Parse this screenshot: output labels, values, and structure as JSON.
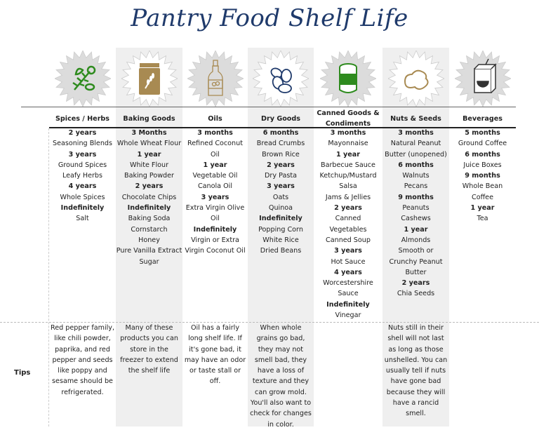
{
  "title": "Pantry Food Shelf Life",
  "tips_label": "Tips",
  "colors": {
    "title": "#1f3a6b",
    "herb_green": "#2e8b1e",
    "gold": "#a88a52",
    "navy": "#1f3a6b",
    "shade": "#efefef"
  },
  "columns": [
    {
      "header": "Spices / Herbs",
      "icon": "herbs-icon",
      "shaded": false,
      "entries": [
        {
          "t": "2 years",
          "b": true
        },
        {
          "t": "Seasoning Blends"
        },
        {
          "t": "3 years",
          "b": true
        },
        {
          "t": "Ground Spices"
        },
        {
          "t": "Leafy Herbs"
        },
        {
          "t": "4 years",
          "b": true
        },
        {
          "t": "Whole Spices"
        },
        {
          "t": "Indefinitely",
          "b": true
        },
        {
          "t": "Salt"
        }
      ],
      "tip": "Red pepper family, like chili powder, paprika, and red pepper and seeds like poppy and sesame should be refrigerated."
    },
    {
      "header": "Baking Goods",
      "icon": "flour-jar-icon",
      "shaded": true,
      "entries": [
        {
          "t": "3 Months",
          "b": true
        },
        {
          "t": "Whole Wheat Flour"
        },
        {
          "t": "1 year",
          "b": true
        },
        {
          "t": "White Flour"
        },
        {
          "t": "Baking Powder"
        },
        {
          "t": "2 years",
          "b": true
        },
        {
          "t": "Chocolate Chips"
        },
        {
          "t": "Indefinitely",
          "b": true
        },
        {
          "t": "Baking Soda"
        },
        {
          "t": "Cornstarch"
        },
        {
          "t": "Honey"
        },
        {
          "t": "Pure Vanilla Extract"
        },
        {
          "t": "Sugar"
        }
      ],
      "tip": "Many of these products you can store in the freezer to extend the shelf life"
    },
    {
      "header": "Oils",
      "icon": "oil-bottle-icon",
      "shaded": false,
      "entries": [
        {
          "t": "3 months",
          "b": true
        },
        {
          "t": "Refined Coconut"
        },
        {
          "t": "Oil"
        },
        {
          "t": "1 year",
          "b": true
        },
        {
          "t": "Vegetable Oil"
        },
        {
          "t": "Canola Oil"
        },
        {
          "t": "3 years",
          "b": true
        },
        {
          "t": "Extra Virgin Olive"
        },
        {
          "t": "Oil"
        },
        {
          "t": "Indefinitely",
          "b": true
        },
        {
          "t": "Virgin or Extra"
        },
        {
          "t": "Virgin Coconut Oil"
        }
      ],
      "tip": "Oil has a fairly long shelf life. If it's gone bad, it may have an odor or taste stall or off."
    },
    {
      "header": "Dry Goods",
      "icon": "beans-icon",
      "shaded": true,
      "entries": [
        {
          "t": "6 months",
          "b": true
        },
        {
          "t": "Bread Crumbs"
        },
        {
          "t": "Brown Rice"
        },
        {
          "t": "2 years",
          "b": true
        },
        {
          "t": "Dry Pasta"
        },
        {
          "t": "3 years",
          "b": true
        },
        {
          "t": "Oats"
        },
        {
          "t": "Quinoa"
        },
        {
          "t": "Indefinitely",
          "b": true
        },
        {
          "t": "Popping Corn"
        },
        {
          "t": "White Rice"
        },
        {
          "t": "Dried Beans"
        }
      ],
      "tip": "When whole grains go bad, they may not smell bad, they have a loss of texture and they can grow mold. You'll also want to check for changes in color."
    },
    {
      "header": "Canned Goods & Condiments",
      "icon": "can-icon",
      "shaded": false,
      "entries": [
        {
          "t": "3 months",
          "b": true
        },
        {
          "t": "Mayonnaise"
        },
        {
          "t": "1 year",
          "b": true
        },
        {
          "t": "Barbecue Sauce"
        },
        {
          "t": "Ketchup/Mustard"
        },
        {
          "t": "Salsa"
        },
        {
          "t": "Jams & Jellies"
        },
        {
          "t": "2 years",
          "b": true
        },
        {
          "t": "Canned"
        },
        {
          "t": "Vegetables"
        },
        {
          "t": "Canned Soup"
        },
        {
          "t": "3 years",
          "b": true
        },
        {
          "t": "Hot Sauce"
        },
        {
          "t": "4 years",
          "b": true
        },
        {
          "t": "Worcestershire"
        },
        {
          "t": "Sauce"
        },
        {
          "t": "Indefinitely",
          "b": true
        },
        {
          "t": "Vinegar"
        }
      ],
      "tip": ""
    },
    {
      "header": "Nuts & Seeds",
      "icon": "peanuts-icon",
      "shaded": true,
      "entries": [
        {
          "t": "3 months",
          "b": true
        },
        {
          "t": "Natural Peanut"
        },
        {
          "t": "Butter (unopened)"
        },
        {
          "t": "6 months",
          "b": true
        },
        {
          "t": "Walnuts"
        },
        {
          "t": "Pecans"
        },
        {
          "t": "9 months",
          "b": true
        },
        {
          "t": "Peanuts"
        },
        {
          "t": "Cashews"
        },
        {
          "t": "1 year",
          "b": true
        },
        {
          "t": "Almonds"
        },
        {
          "t": "Smooth or"
        },
        {
          "t": "Crunchy Peanut"
        },
        {
          "t": "Butter"
        },
        {
          "t": "2 years",
          "b": true
        },
        {
          "t": "Chia Seeds"
        }
      ],
      "tip": "Nuts still in their shell will not last as long as those unshelled. You can usually tell if nuts have gone bad because they will have a rancid smell."
    },
    {
      "header": "Beverages",
      "icon": "juice-box-icon",
      "shaded": false,
      "entries": [
        {
          "t": "5 months",
          "b": true
        },
        {
          "t": "Ground Coffee"
        },
        {
          "t": "6 months",
          "b": true
        },
        {
          "t": "Juice Boxes"
        },
        {
          "t": "9 months",
          "b": true
        },
        {
          "t": "Whole Bean"
        },
        {
          "t": "Coffee"
        },
        {
          "t": "1 year",
          "b": true
        },
        {
          "t": "Tea"
        }
      ],
      "tip": ""
    }
  ]
}
